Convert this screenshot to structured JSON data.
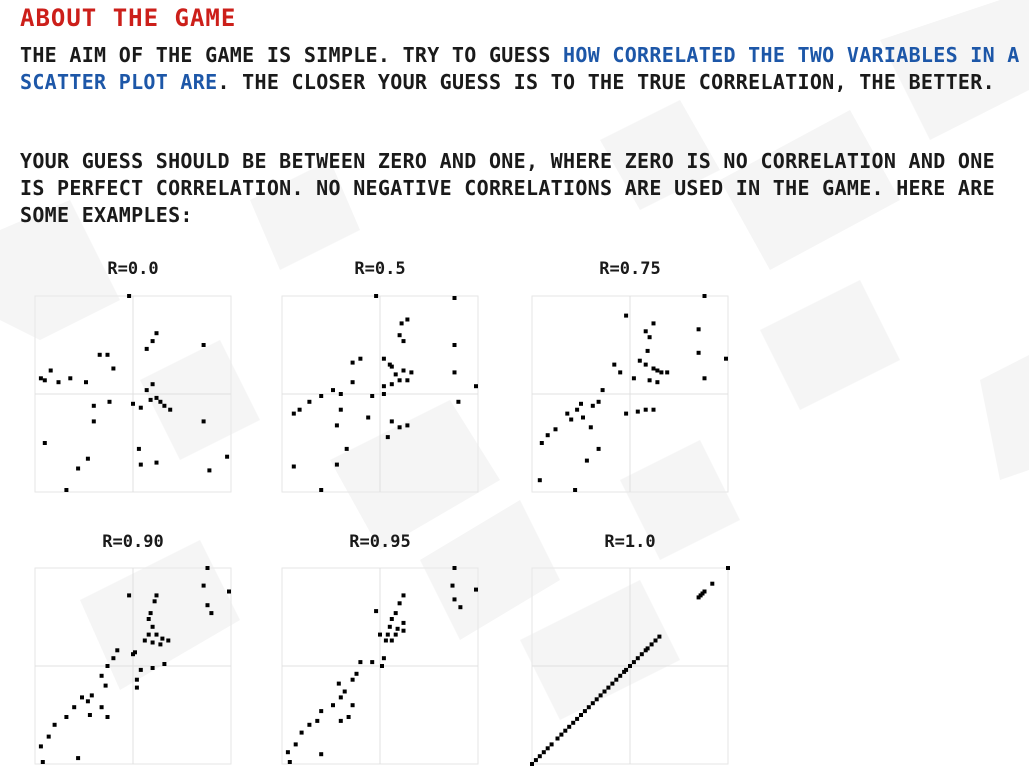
{
  "heading": "ABOUT THE GAME",
  "paragraph1": {
    "before": "THE AIM OF THE GAME IS SIMPLE. TRY TO GUESS ",
    "highlight": "HOW CORRELATED THE TWO VARIABLES IN A SCATTER PLOT ARE",
    "after": ". THE CLOSER YOUR GUESS IS TO THE TRUE CORRELATION, THE BETTER."
  },
  "paragraph2": "YOUR GUESS SHOULD BE BETWEEN ZERO AND ONE, WHERE ZERO IS NO CORRELATION AND ONE IS PERFECT CORRELATION. NO NEGATIVE CORRELATIONS ARE USED IN THE GAME. HERE ARE SOME EXAMPLES:",
  "colors": {
    "heading": "#cc1f1a",
    "highlight": "#1d57a8",
    "text": "#1a1a1a"
  },
  "chart_data": [
    {
      "type": "scatter",
      "title": "R=0.0",
      "xlim": [
        0,
        1
      ],
      "ylim": [
        0,
        1
      ],
      "grid": true,
      "points": [
        [
          0.48,
          1.0
        ],
        [
          0.03,
          0.58
        ],
        [
          0.05,
          0.57
        ],
        [
          0.08,
          0.62
        ],
        [
          0.12,
          0.56
        ],
        [
          0.18,
          0.58
        ],
        [
          0.26,
          0.56
        ],
        [
          0.33,
          0.7
        ],
        [
          0.37,
          0.7
        ],
        [
          0.4,
          0.63
        ],
        [
          0.57,
          0.73
        ],
        [
          0.6,
          0.77
        ],
        [
          0.62,
          0.81
        ],
        [
          0.6,
          0.55
        ],
        [
          0.57,
          0.52
        ],
        [
          0.59,
          0.47
        ],
        [
          0.62,
          0.48
        ],
        [
          0.64,
          0.46
        ],
        [
          0.66,
          0.44
        ],
        [
          0.69,
          0.42
        ],
        [
          0.5,
          0.45
        ],
        [
          0.54,
          0.43
        ],
        [
          0.3,
          0.44
        ],
        [
          0.38,
          0.46
        ],
        [
          0.86,
          0.75
        ],
        [
          0.86,
          0.36
        ],
        [
          0.05,
          0.25
        ],
        [
          0.27,
          0.17
        ],
        [
          0.22,
          0.12
        ],
        [
          0.53,
          0.22
        ],
        [
          0.54,
          0.14
        ],
        [
          0.62,
          0.15
        ],
        [
          0.89,
          0.11
        ],
        [
          0.98,
          0.18
        ],
        [
          0.16,
          0.01
        ],
        [
          0.3,
          0.36
        ]
      ]
    },
    {
      "type": "scatter",
      "title": "R=0.5",
      "xlim": [
        0,
        1
      ],
      "ylim": [
        0,
        1
      ],
      "grid": true,
      "points": [
        [
          0.48,
          1.0
        ],
        [
          0.88,
          0.99
        ],
        [
          0.61,
          0.86
        ],
        [
          0.64,
          0.88
        ],
        [
          0.6,
          0.8
        ],
        [
          0.62,
          0.77
        ],
        [
          0.88,
          0.75
        ],
        [
          0.36,
          0.66
        ],
        [
          0.4,
          0.68
        ],
        [
          0.52,
          0.68
        ],
        [
          0.55,
          0.65
        ],
        [
          0.56,
          0.64
        ],
        [
          0.58,
          0.6
        ],
        [
          0.62,
          0.62
        ],
        [
          0.66,
          0.61
        ],
        [
          0.6,
          0.57
        ],
        [
          0.64,
          0.57
        ],
        [
          0.36,
          0.56
        ],
        [
          0.88,
          0.61
        ],
        [
          0.99,
          0.54
        ],
        [
          0.26,
          0.52
        ],
        [
          0.2,
          0.49
        ],
        [
          0.3,
          0.5
        ],
        [
          0.46,
          0.49
        ],
        [
          0.52,
          0.5
        ],
        [
          0.52,
          0.54
        ],
        [
          0.06,
          0.4
        ],
        [
          0.09,
          0.42
        ],
        [
          0.14,
          0.46
        ],
        [
          0.3,
          0.42
        ],
        [
          0.44,
          0.38
        ],
        [
          0.56,
          0.36
        ],
        [
          0.64,
          0.34
        ],
        [
          0.6,
          0.33
        ],
        [
          0.28,
          0.34
        ],
        [
          0.9,
          0.46
        ],
        [
          0.54,
          0.28
        ],
        [
          0.33,
          0.22
        ],
        [
          0.06,
          0.13
        ],
        [
          0.28,
          0.14
        ],
        [
          0.2,
          0.01
        ],
        [
          0.56,
          0.55
        ]
      ]
    },
    {
      "type": "scatter",
      "title": "R=0.75",
      "xlim": [
        0,
        1
      ],
      "ylim": [
        0,
        1
      ],
      "grid": true,
      "points": [
        [
          0.88,
          1.0
        ],
        [
          0.48,
          0.9
        ],
        [
          0.62,
          0.86
        ],
        [
          0.58,
          0.82
        ],
        [
          0.85,
          0.83
        ],
        [
          0.6,
          0.79
        ],
        [
          0.59,
          0.72
        ],
        [
          0.85,
          0.71
        ],
        [
          0.55,
          0.67
        ],
        [
          0.58,
          0.65
        ],
        [
          0.62,
          0.63
        ],
        [
          0.64,
          0.62
        ],
        [
          0.66,
          0.61
        ],
        [
          0.69,
          0.61
        ],
        [
          0.99,
          0.68
        ],
        [
          0.42,
          0.65
        ],
        [
          0.45,
          0.61
        ],
        [
          0.52,
          0.58
        ],
        [
          0.6,
          0.57
        ],
        [
          0.64,
          0.56
        ],
        [
          0.88,
          0.58
        ],
        [
          0.36,
          0.52
        ],
        [
          0.31,
          0.44
        ],
        [
          0.25,
          0.45
        ],
        [
          0.34,
          0.46
        ],
        [
          0.2,
          0.37
        ],
        [
          0.18,
          0.4
        ],
        [
          0.23,
          0.42
        ],
        [
          0.26,
          0.38
        ],
        [
          0.3,
          0.33
        ],
        [
          0.48,
          0.4
        ],
        [
          0.54,
          0.41
        ],
        [
          0.58,
          0.42
        ],
        [
          0.62,
          0.42
        ],
        [
          0.05,
          0.25
        ],
        [
          0.08,
          0.29
        ],
        [
          0.12,
          0.32
        ],
        [
          0.34,
          0.22
        ],
        [
          0.28,
          0.16
        ],
        [
          0.22,
          0.01
        ],
        [
          0.04,
          0.06
        ]
      ]
    },
    {
      "type": "scatter",
      "title": "R=0.90",
      "xlim": [
        0,
        1
      ],
      "ylim": [
        0,
        1
      ],
      "grid": true,
      "points": [
        [
          0.88,
          1.0
        ],
        [
          0.86,
          0.91
        ],
        [
          0.99,
          0.88
        ],
        [
          0.88,
          0.81
        ],
        [
          0.9,
          0.77
        ],
        [
          0.62,
          0.86
        ],
        [
          0.61,
          0.83
        ],
        [
          0.48,
          0.86
        ],
        [
          0.59,
          0.77
        ],
        [
          0.58,
          0.74
        ],
        [
          0.6,
          0.7
        ],
        [
          0.58,
          0.66
        ],
        [
          0.62,
          0.66
        ],
        [
          0.65,
          0.64
        ],
        [
          0.68,
          0.63
        ],
        [
          0.56,
          0.63
        ],
        [
          0.6,
          0.62
        ],
        [
          0.64,
          0.61
        ],
        [
          0.5,
          0.56
        ],
        [
          0.51,
          0.57
        ],
        [
          0.42,
          0.58
        ],
        [
          0.4,
          0.54
        ],
        [
          0.37,
          0.5
        ],
        [
          0.66,
          0.51
        ],
        [
          0.6,
          0.49
        ],
        [
          0.54,
          0.48
        ],
        [
          0.52,
          0.43
        ],
        [
          0.52,
          0.39
        ],
        [
          0.34,
          0.45
        ],
        [
          0.36,
          0.4
        ],
        [
          0.29,
          0.35
        ],
        [
          0.24,
          0.34
        ],
        [
          0.27,
          0.32
        ],
        [
          0.2,
          0.29
        ],
        [
          0.34,
          0.29
        ],
        [
          0.37,
          0.24
        ],
        [
          0.28,
          0.25
        ],
        [
          0.16,
          0.24
        ],
        [
          0.1,
          0.2
        ],
        [
          0.07,
          0.14
        ],
        [
          0.03,
          0.09
        ],
        [
          0.22,
          0.03
        ],
        [
          0.04,
          0.01
        ]
      ]
    },
    {
      "type": "scatter",
      "title": "R=0.95",
      "xlim": [
        0,
        1
      ],
      "ylim": [
        0,
        1
      ],
      "grid": true,
      "points": [
        [
          0.88,
          1.0
        ],
        [
          0.87,
          0.91
        ],
        [
          0.99,
          0.89
        ],
        [
          0.88,
          0.84
        ],
        [
          0.91,
          0.8
        ],
        [
          0.62,
          0.86
        ],
        [
          0.6,
          0.82
        ],
        [
          0.48,
          0.78
        ],
        [
          0.58,
          0.77
        ],
        [
          0.62,
          0.72
        ],
        [
          0.56,
          0.74
        ],
        [
          0.55,
          0.7
        ],
        [
          0.59,
          0.69
        ],
        [
          0.62,
          0.68
        ],
        [
          0.58,
          0.66
        ],
        [
          0.54,
          0.66
        ],
        [
          0.5,
          0.66
        ],
        [
          0.53,
          0.63
        ],
        [
          0.56,
          0.63
        ],
        [
          0.52,
          0.54
        ],
        [
          0.46,
          0.52
        ],
        [
          0.4,
          0.52
        ],
        [
          0.38,
          0.46
        ],
        [
          0.36,
          0.43
        ],
        [
          0.51,
          0.5
        ],
        [
          0.29,
          0.41
        ],
        [
          0.32,
          0.37
        ],
        [
          0.3,
          0.34
        ],
        [
          0.26,
          0.3
        ],
        [
          0.36,
          0.3
        ],
        [
          0.3,
          0.22
        ],
        [
          0.34,
          0.24
        ],
        [
          0.2,
          0.27
        ],
        [
          0.18,
          0.22
        ],
        [
          0.14,
          0.2
        ],
        [
          0.1,
          0.16
        ],
        [
          0.07,
          0.1
        ],
        [
          0.03,
          0.06
        ],
        [
          0.2,
          0.05
        ],
        [
          0.04,
          0.01
        ]
      ]
    },
    {
      "type": "scatter",
      "title": "R=1.0",
      "xlim": [
        0,
        1
      ],
      "ylim": [
        0,
        1
      ],
      "grid": true,
      "points": [
        [
          1.0,
          1.0
        ],
        [
          0.92,
          0.92
        ],
        [
          0.88,
          0.88
        ],
        [
          0.87,
          0.87
        ],
        [
          0.86,
          0.86
        ],
        [
          0.85,
          0.85
        ],
        [
          0.65,
          0.65
        ],
        [
          0.63,
          0.63
        ],
        [
          0.61,
          0.61
        ],
        [
          0.59,
          0.59
        ],
        [
          0.58,
          0.58
        ],
        [
          0.56,
          0.56
        ],
        [
          0.54,
          0.54
        ],
        [
          0.52,
          0.52
        ],
        [
          0.5,
          0.5
        ],
        [
          0.48,
          0.48
        ],
        [
          0.47,
          0.47
        ],
        [
          0.45,
          0.45
        ],
        [
          0.43,
          0.43
        ],
        [
          0.41,
          0.41
        ],
        [
          0.39,
          0.39
        ],
        [
          0.37,
          0.37
        ],
        [
          0.35,
          0.35
        ],
        [
          0.33,
          0.33
        ],
        [
          0.31,
          0.31
        ],
        [
          0.29,
          0.29
        ],
        [
          0.27,
          0.27
        ],
        [
          0.25,
          0.25
        ],
        [
          0.23,
          0.23
        ],
        [
          0.21,
          0.21
        ],
        [
          0.19,
          0.19
        ],
        [
          0.17,
          0.17
        ],
        [
          0.15,
          0.15
        ],
        [
          0.13,
          0.13
        ],
        [
          0.1,
          0.1
        ],
        [
          0.08,
          0.08
        ],
        [
          0.06,
          0.06
        ],
        [
          0.04,
          0.04
        ],
        [
          0.02,
          0.02
        ],
        [
          0.0,
          0.0
        ]
      ]
    }
  ]
}
